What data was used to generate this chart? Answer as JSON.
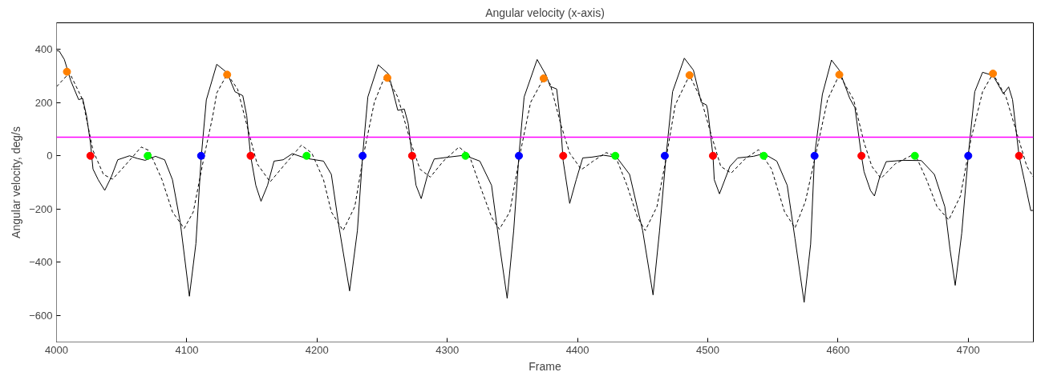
{
  "chart_data": {
    "type": "line",
    "title": "Angular velocity (x-axis)",
    "xlabel": "Frame",
    "ylabel": "Angular velocity, deg/s",
    "xlim": [
      4000,
      4750
    ],
    "xticks": [
      4000,
      4100,
      4200,
      4300,
      4400,
      4500,
      4600,
      4700
    ],
    "ylim": [
      -700,
      500
    ],
    "yticks": [
      -600,
      -400,
      -200,
      0,
      200,
      400
    ],
    "grid": false,
    "ref_lines": [
      {
        "axis": "y",
        "value": 70,
        "label": null,
        "color": "#ff00ff",
        "line_style": "solid"
      }
    ],
    "series": [
      {
        "color": "#000000",
        "line_style": "solid",
        "marker": "none",
        "x": [
          4000,
          4002,
          4006,
          4011,
          4017,
          4020,
          4023,
          4026,
          4028,
          4032,
          4037,
          4042,
          4047,
          4056,
          4062,
          4068,
          4076,
          4083,
          4089,
          4095,
          4102,
          4107,
          4111,
          4115,
          4123,
          4131,
          4137,
          4143,
          4146,
          4149,
          4153,
          4157,
          4162,
          4167,
          4174,
          4181,
          4192,
          4205,
          4211,
          4217,
          4225,
          4231,
          4235,
          4239,
          4247,
          4255,
          4262,
          4267,
          4270,
          4273,
          4276,
          4280,
          4285,
          4290,
          4301,
          4313,
          4325,
          4334,
          4340,
          4346,
          4351,
          4355,
          4359,
          4369,
          4376,
          4379,
          4384,
          4387,
          4389,
          4394,
          4399,
          4404,
          4411,
          4420,
          4430,
          4440,
          4450,
          4458,
          4463,
          4468,
          4473,
          4482,
          4489,
          4495,
          4499,
          4500,
          4504,
          4505,
          4509,
          4517,
          4523,
          4535,
          4543,
          4553,
          4561,
          4567,
          4574,
          4579,
          4582,
          4588,
          4595,
          4601,
          4609,
          4613,
          4618,
          4620,
          4625,
          4628,
          4632,
          4637,
          4650,
          4664,
          4674,
          4682,
          4686,
          4690,
          4695,
          4700,
          4705,
          4711,
          4719,
          4727,
          4731,
          4734,
          4739,
          4743,
          4748,
          4750
        ],
        "values": [
          395,
          394,
          362,
          281,
          211,
          216,
          151,
          50,
          -50,
          -90,
          -130,
          -80,
          -15,
          0,
          -10,
          -17,
          -2,
          -15,
          -90,
          -250,
          -528,
          -330,
          -10,
          210,
          344,
          312,
          241,
          226,
          151,
          0,
          -111,
          -171,
          -111,
          -20,
          -15,
          8,
          -10,
          -20,
          -70,
          -271,
          -508,
          -281,
          0,
          221,
          342,
          307,
          171,
          176,
          121,
          0,
          -111,
          -161,
          -70,
          -12,
          -5,
          2,
          -20,
          -111,
          -332,
          -536,
          -281,
          0,
          221,
          362,
          302,
          261,
          251,
          121,
          -20,
          -179,
          -90,
          -8,
          -5,
          2,
          -5,
          -70,
          -281,
          -523,
          -281,
          0,
          241,
          367,
          322,
          201,
          191,
          171,
          0,
          -90,
          -143,
          -40,
          -8,
          -2,
          8,
          -20,
          -111,
          -312,
          -551,
          -332,
          0,
          231,
          360,
          322,
          216,
          181,
          0,
          -60,
          -131,
          -151,
          -80,
          -22,
          -17,
          -18,
          -70,
          -191,
          -352,
          -487,
          -291,
          0,
          241,
          314,
          302,
          233,
          259,
          211,
          0,
          -90,
          -206,
          -205
        ]
      },
      {
        "type": "line",
        "color": "#000000",
        "line_style": "dashed",
        "marker": "none",
        "x": [
          4000,
          4010,
          4020,
          4028,
          4036,
          4043,
          4052,
          4065,
          4071,
          4081,
          4089,
          4098,
          4105,
          4113,
          4120,
          4123,
          4131,
          4139,
          4148,
          4154,
          4164,
          4174,
          4188,
          4196,
          4205,
          4211,
          4220,
          4229,
          4236,
          4244,
          4251,
          4254,
          4262,
          4272,
          4279,
          4287,
          4297,
          4309,
          4317,
          4325,
          4334,
          4340,
          4348,
          4356,
          4364,
          4374,
          4379,
          4387,
          4394,
          4403,
          4412,
          4422,
          4429,
          4438,
          4446,
          4452,
          4461,
          4468,
          4475,
          4486,
          4495,
          4502,
          4510,
          4518,
          4529,
          4539,
          4549,
          4559,
          4567,
          4575,
          4584,
          4592,
          4601,
          4612,
          4620,
          4626,
          4633,
          4644,
          4659,
          4668,
          4676,
          4685,
          4694,
          4702,
          4711,
          4719,
          4729,
          4737,
          4745,
          4750
        ],
        "values": [
          260,
          312,
          211,
          20,
          -70,
          -88,
          -40,
          33,
          20,
          -90,
          -211,
          -273,
          -211,
          -10,
          151,
          236,
          307,
          251,
          80,
          -30,
          -98,
          -40,
          40,
          10,
          -90,
          -211,
          -281,
          -191,
          10,
          201,
          286,
          293,
          221,
          50,
          -50,
          -80,
          -20,
          33,
          0,
          -111,
          -231,
          -276,
          -211,
          10,
          201,
          291,
          271,
          121,
          10,
          -52,
          -20,
          12,
          0,
          -111,
          -231,
          -281,
          -191,
          -10,
          191,
          303,
          211,
          90,
          -40,
          -65,
          -10,
          23,
          -50,
          -211,
          -271,
          -171,
          30,
          211,
          305,
          211,
          50,
          -40,
          -85,
          -30,
          8,
          -90,
          -191,
          -241,
          -151,
          60,
          241,
          309,
          221,
          90,
          -40,
          -80
        ]
      },
      {
        "type": "scatter",
        "color": "#ff8000",
        "marker": "circle",
        "x": [
          4008,
          4131,
          4254,
          4374,
          4486,
          4601,
          4719
        ],
        "values": [
          316,
          305,
          293,
          291,
          303,
          305,
          309
        ]
      },
      {
        "type": "scatter",
        "color": "#ff0000",
        "marker": "circle",
        "x": [
          4026,
          4149,
          4273,
          4389,
          4504,
          4618,
          4739
        ],
        "values": [
          0,
          0,
          0,
          0,
          0,
          0,
          0
        ]
      },
      {
        "type": "scatter",
        "color": "#00ff00",
        "marker": "circle",
        "x": [
          4070,
          4192,
          4314,
          4429,
          4543,
          4659
        ],
        "values": [
          0,
          0,
          0,
          0,
          0,
          0
        ]
      },
      {
        "type": "scatter",
        "color": "#0000ff",
        "marker": "circle",
        "x": [
          4111,
          4235,
          4355,
          4467,
          4582,
          4700
        ],
        "values": [
          0,
          0,
          0,
          0,
          0,
          0
        ]
      }
    ]
  }
}
